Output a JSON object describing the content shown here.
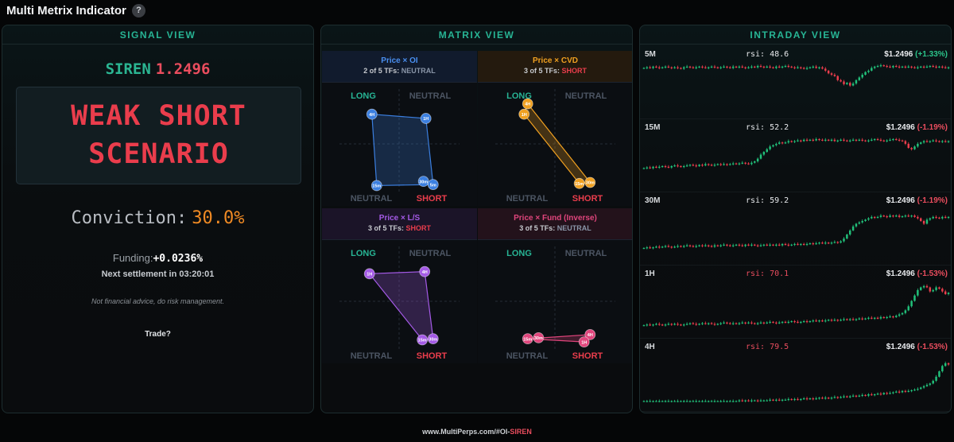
{
  "header": {
    "title": "Multi Metrix Indicator",
    "help": "?"
  },
  "signal": {
    "panel_title": "SIGNAL VIEW",
    "symbol": "SIREN",
    "price": "1.2496",
    "scenario_line1": "WEAK SHORT",
    "scenario_line2": "SCENARIO",
    "conviction_label": "Conviction:",
    "conviction_value": "30.0%",
    "funding_label": "Funding:",
    "funding_value": "+0.0236%",
    "settlement": "Next settlement in 03:20:01",
    "disclaimer": "Not financial advice, do risk management.",
    "trade": "Trade?"
  },
  "matrix": {
    "panel_title": "MATRIX VIEW",
    "quadrants": [
      {
        "name": "Price × OI",
        "summary": "2 of 5 TFs:",
        "state": "NEUTRAL",
        "color": "#3b7fe0",
        "stateColor": "#8a96a8",
        "points": [
          {
            "label": "4H",
            "x": 0.27,
            "y": 0.76
          },
          {
            "label": "1H",
            "x": 0.72,
            "y": 0.72
          },
          {
            "label": "15m",
            "x": 0.31,
            "y": 0.08
          },
          {
            "label": "30m",
            "x": 0.7,
            "y": 0.12
          },
          {
            "label": "5m",
            "x": 0.78,
            "y": 0.09
          }
        ],
        "hull": [
          0,
          1,
          4,
          2
        ]
      },
      {
        "name": "Price × CVD",
        "summary": "3 of 5 TFs:",
        "state": "SHORT",
        "color": "#f0a020",
        "stateColor": "#ea3d4c",
        "points": [
          {
            "label": "4H",
            "x": 0.27,
            "y": 0.86
          },
          {
            "label": "1H",
            "x": 0.24,
            "y": 0.76
          },
          {
            "label": "15m",
            "x": 0.7,
            "y": 0.1
          },
          {
            "label": "30m",
            "x": 0.79,
            "y": 0.11
          }
        ],
        "hull": [
          0,
          3,
          2,
          1
        ]
      },
      {
        "name": "Price × L/S",
        "summary": "3 of 5 TFs:",
        "state": "SHORT",
        "color": "#a45ae6",
        "stateColor": "#ea3d4c",
        "points": [
          {
            "label": "1H",
            "x": 0.25,
            "y": 0.74
          },
          {
            "label": "4H",
            "x": 0.71,
            "y": 0.76
          },
          {
            "label": "15m",
            "x": 0.69,
            "y": 0.11
          },
          {
            "label": "30m",
            "x": 0.78,
            "y": 0.12
          }
        ],
        "hull": [
          0,
          1,
          3,
          2
        ]
      },
      {
        "name": "Price × Fund (Inverse)",
        "summary": "3 of 5 TFs:",
        "state": "NEUTRAL",
        "color": "#e0457c",
        "stateColor": "#8a96a8",
        "points": [
          {
            "label": "15m",
            "x": 0.27,
            "y": 0.12
          },
          {
            "label": "30m",
            "x": 0.36,
            "y": 0.13
          },
          {
            "label": "4H",
            "x": 0.79,
            "y": 0.16
          },
          {
            "label": "1H",
            "x": 0.74,
            "y": 0.09
          }
        ],
        "hull": [
          0,
          2,
          3
        ]
      }
    ],
    "labels": {
      "long": "LONG",
      "neutral": "NEUTRAL",
      "short": "SHORT"
    }
  },
  "intraday": {
    "panel_title": "INTRADAY VIEW",
    "rows": [
      {
        "tf": "5M",
        "rsi_label": "rsi:",
        "rsi": "48.6",
        "rsiColor": "#e8eaed",
        "price": "$1.2496",
        "change": "(+1.33%)",
        "changeColor": "#2bc48a",
        "closes": [
          70,
          71,
          70,
          72,
          71,
          70,
          71,
          72,
          71,
          70,
          71,
          70,
          69,
          71,
          72,
          71,
          70,
          71,
          72,
          71,
          70,
          71,
          72,
          71,
          70,
          71,
          72,
          71,
          70,
          72,
          71,
          72,
          71,
          70,
          71,
          72,
          71,
          73,
          72,
          71,
          72,
          71,
          70,
          72,
          71,
          72,
          73,
          72,
          71,
          70,
          71,
          70,
          69,
          70,
          71,
          72,
          70,
          71,
          69,
          66,
          62,
          60,
          58,
          52,
          50,
          46,
          48,
          44,
          47,
          52,
          56,
          60,
          64,
          66,
          70,
          72,
          73,
          74,
          73,
          72,
          71,
          73,
          72,
          71,
          72,
          71,
          72,
          71,
          70,
          71,
          72,
          71,
          72,
          73,
          72,
          71,
          72,
          71,
          70,
          71
        ]
      },
      {
        "tf": "15M",
        "rsi_label": "rsi:",
        "rsi": "52.2",
        "rsiColor": "#e8eaed",
        "price": "$1.2496",
        "change": "(-1.19%)",
        "changeColor": "#ea4d5e",
        "closes": [
          30,
          31,
          30,
          32,
          31,
          32,
          33,
          32,
          31,
          33,
          34,
          33,
          32,
          33,
          34,
          35,
          34,
          33,
          35,
          34,
          36,
          35,
          34,
          35,
          36,
          35,
          36,
          35,
          36,
          37,
          36,
          37,
          38,
          37,
          36,
          38,
          40,
          44,
          50,
          54,
          58,
          62,
          64,
          66,
          68,
          67,
          68,
          70,
          69,
          70,
          71,
          70,
          72,
          71,
          72,
          71,
          73,
          72,
          71,
          72,
          71,
          72,
          70,
          71,
          72,
          71,
          70,
          71,
          72,
          71,
          72,
          71,
          70,
          71,
          72,
          73,
          72,
          71,
          70,
          71,
          72,
          73,
          72,
          71,
          70,
          66,
          60,
          58,
          62,
          66,
          68,
          70,
          69,
          70,
          71,
          70,
          69,
          70,
          69,
          70
        ]
      },
      {
        "tf": "30M",
        "rsi_label": "rsi:",
        "rsi": "59.2",
        "rsiColor": "#e8eaed",
        "price": "$1.2496",
        "change": "(-1.19%)",
        "changeColor": "#ea4d5e",
        "closes": [
          20,
          21,
          20,
          21,
          22,
          21,
          22,
          23,
          22,
          21,
          22,
          23,
          22,
          23,
          24,
          23,
          22,
          23,
          24,
          23,
          24,
          23,
          22,
          24,
          23,
          24,
          25,
          24,
          23,
          24,
          25,
          24,
          23,
          25,
          24,
          25,
          24,
          23,
          24,
          25,
          24,
          25,
          24,
          25,
          24,
          26,
          25,
          24,
          25,
          26,
          25,
          26,
          25,
          26,
          27,
          26,
          27,
          28,
          27,
          28,
          27,
          28,
          29,
          28,
          30,
          34,
          40,
          46,
          52,
          56,
          58,
          60,
          62,
          64,
          66,
          65,
          66,
          68,
          67,
          66,
          68,
          67,
          68,
          66,
          67,
          68,
          67,
          68,
          66,
          64,
          60,
          56,
          62,
          64,
          66,
          65,
          64,
          66,
          65,
          66
        ]
      },
      {
        "tf": "1H",
        "rsi_label": "rsi:",
        "rsi": "70.1",
        "rsiColor": "#ea4d5e",
        "price": "$1.2496",
        "change": "(-1.53%)",
        "changeColor": "#ea4d5e",
        "closes": [
          14,
          15,
          14,
          15,
          16,
          15,
          14,
          15,
          16,
          15,
          16,
          15,
          14,
          15,
          16,
          17,
          16,
          15,
          16,
          17,
          16,
          17,
          16,
          15,
          16,
          17,
          18,
          17,
          16,
          17,
          16,
          17,
          18,
          17,
          18,
          17,
          16,
          17,
          18,
          17,
          18,
          19,
          18,
          17,
          18,
          19,
          18,
          19,
          20,
          19,
          18,
          19,
          20,
          19,
          20,
          21,
          20,
          21,
          20,
          21,
          22,
          21,
          22,
          21,
          22,
          23,
          22,
          23,
          22,
          23,
          24,
          23,
          24,
          25,
          24,
          25,
          24,
          26,
          25,
          26,
          27,
          26,
          28,
          30,
          32,
          36,
          42,
          50,
          58,
          66,
          70,
          72,
          70,
          64,
          66,
          70,
          68,
          64,
          60,
          62
        ]
      },
      {
        "tf": "4H",
        "rsi_label": "rsi:",
        "rsi": "79.5",
        "rsiColor": "#ea4d5e",
        "price": "$1.2496",
        "change": "(-1.53%)",
        "changeColor": "#ea4d5e",
        "closes": [
          10,
          10,
          10,
          10,
          10,
          10,
          10,
          10,
          10,
          10,
          10,
          10,
          10,
          10,
          10,
          10,
          10,
          10,
          10,
          10,
          10,
          10,
          10,
          10,
          10,
          10,
          10,
          10,
          10,
          10,
          10,
          11,
          10,
          11,
          10,
          11,
          11,
          10,
          11,
          11,
          11,
          12,
          11,
          12,
          11,
          12,
          12,
          13,
          12,
          13,
          12,
          13,
          14,
          13,
          14,
          13,
          14,
          15,
          14,
          15,
          14,
          15,
          16,
          15,
          16,
          17,
          16,
          17,
          18,
          17,
          18,
          19,
          18,
          20,
          19,
          20,
          21,
          20,
          22,
          21,
          22,
          23,
          24,
          23,
          25,
          24,
          25,
          26,
          27,
          28,
          30,
          32,
          34,
          36,
          40,
          46,
          54,
          62,
          66,
          64
        ]
      }
    ]
  },
  "footer": {
    "prefix": "www.MultiPerps.com/#OI-",
    "symbol": "SIREN"
  }
}
